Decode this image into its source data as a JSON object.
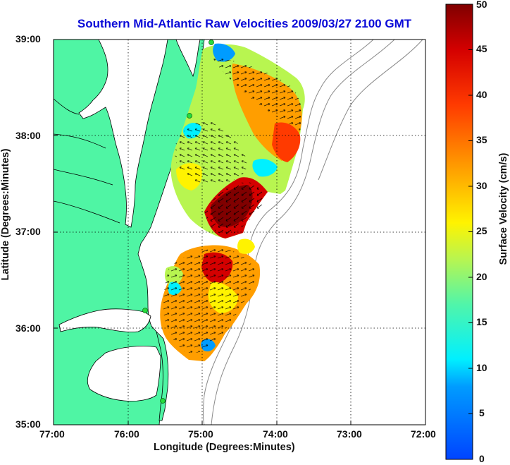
{
  "map": {
    "title": "Southern Mid-Atlantic Raw Velocities 2009/03/27 2100 GMT",
    "xlabel": "Longitude (Degrees:Minutes)",
    "ylabel": "Latitude (Degrees:Minutes)",
    "x_ticks": [
      "77:00",
      "76:00",
      "75:00",
      "74:00",
      "73:00",
      "72:00"
    ],
    "y_ticks": [
      "39:00",
      "38:00",
      "37:00",
      "36:00",
      "35:00"
    ],
    "colorbar": {
      "label": "Surface Velocity (cm/s)",
      "ticks": [
        "0",
        "5",
        "10",
        "15",
        "20",
        "25",
        "30",
        "35",
        "40",
        "45",
        "50"
      ],
      "min": 0,
      "max": 50
    },
    "colors": {
      "land": "#4ff5a4",
      "title": "#0a0ad8",
      "station": "#26dc3c"
    }
  }
}
